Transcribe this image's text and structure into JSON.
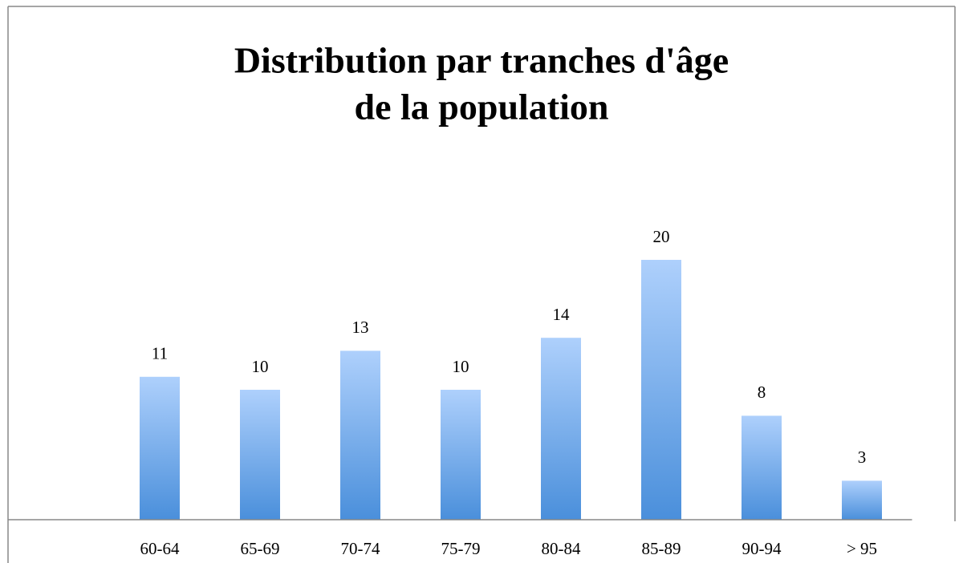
{
  "chart_data": {
    "type": "bar",
    "title": [
      "Distribution par tranches d'âge",
      "de la population"
    ],
    "categories": [
      "60-64",
      "65-69",
      "70-74",
      "75-79",
      "80-84",
      "85-89",
      "90-94",
      "> 95"
    ],
    "values": [
      11,
      10,
      13,
      10,
      14,
      20,
      8,
      3
    ],
    "color": "#6fa8ea",
    "ylim": [
      0,
      25
    ]
  }
}
